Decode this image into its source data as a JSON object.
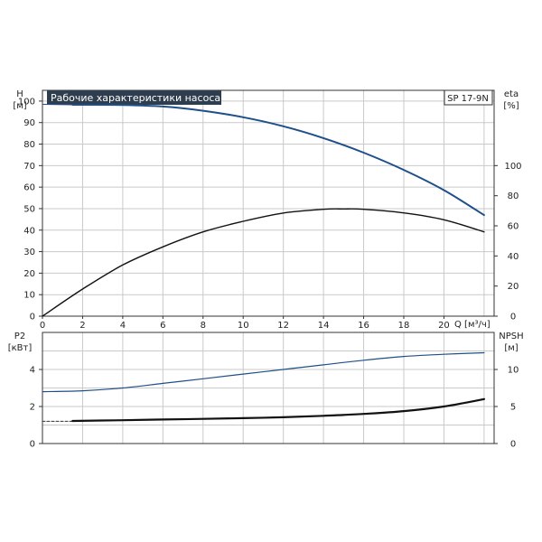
{
  "chart_data": [
    {
      "type": "line",
      "panel": "upper",
      "title": "Рабочие характеристики насоса",
      "model_label": "SP 17-9N",
      "x_label": "Q [м³/ч]",
      "xlim": [
        0,
        22.5
      ],
      "x_ticks": [
        0,
        2,
        4,
        6,
        8,
        10,
        12,
        14,
        16,
        18,
        20
      ],
      "y_left": {
        "label_top": "H",
        "label_bottom": "[м]",
        "lim": [
          0,
          105
        ],
        "ticks": [
          0,
          10,
          20,
          30,
          40,
          50,
          60,
          70,
          80,
          90,
          100
        ]
      },
      "y_right": {
        "label_top": "eta",
        "label_bottom": "[%]",
        "lim": [
          0,
          150
        ],
        "ticks": [
          0,
          20,
          40,
          60,
          80,
          100
        ]
      },
      "grid": true,
      "series": [
        {
          "axis": "left",
          "color": "#1f4f8a",
          "width": 2,
          "lead": [
            [
              0,
              98.5
            ],
            [
              1.5,
              98.3
            ]
          ],
          "x": [
            1.5,
            2,
            4,
            6,
            8,
            10,
            12,
            14,
            16,
            18,
            20,
            22
          ],
          "y": [
            98.3,
            98.3,
            98.2,
            97.5,
            95.5,
            92.5,
            88.3,
            82.8,
            76,
            68,
            58.6,
            47
          ]
        },
        {
          "axis": "right",
          "color": "#111111",
          "width": 1.4,
          "x": [
            0,
            2,
            4,
            6,
            8,
            10,
            12,
            14,
            15,
            16,
            18,
            20,
            22
          ],
          "y": [
            0,
            18,
            34,
            46,
            56,
            63,
            68.5,
            71,
            71.2,
            71,
            68.6,
            64,
            56
          ]
        }
      ]
    },
    {
      "type": "line",
      "panel": "lower",
      "xlim": [
        0,
        22.5
      ],
      "x_ticks": [
        0,
        2,
        4,
        6,
        8,
        10,
        12,
        14,
        16,
        18,
        20
      ],
      "y_left": {
        "label_top": "P2",
        "label_bottom": "[кВт]",
        "lim": [
          0,
          6
        ],
        "ticks": [
          0,
          2,
          4
        ]
      },
      "y_right": {
        "label_top": "NPSH",
        "label_bottom": "[м]",
        "lim": [
          0,
          15
        ],
        "ticks": [
          0,
          5,
          10
        ]
      },
      "grid": true,
      "series": [
        {
          "axis": "left",
          "color": "#1f4f8a",
          "width": 1.2,
          "x": [
            0,
            2,
            4,
            6,
            8,
            10,
            12,
            14,
            16,
            18,
            20,
            22
          ],
          "y": [
            2.8,
            2.85,
            3.0,
            3.25,
            3.5,
            3.75,
            4.0,
            4.25,
            4.5,
            4.7,
            4.82,
            4.9
          ]
        },
        {
          "axis": "left",
          "color": "#333333",
          "width": 1,
          "dash": "3,2",
          "x": [
            0,
            1.5
          ],
          "y": [
            1.2,
            1.2
          ]
        },
        {
          "axis": "left",
          "color": "#111111",
          "width": 2.2,
          "x": [
            1.5,
            4,
            6,
            8,
            10,
            12,
            14,
            16,
            18,
            20,
            22
          ],
          "y": [
            1.22,
            1.26,
            1.3,
            1.33,
            1.37,
            1.42,
            1.5,
            1.6,
            1.75,
            2.0,
            2.4
          ]
        }
      ]
    }
  ]
}
